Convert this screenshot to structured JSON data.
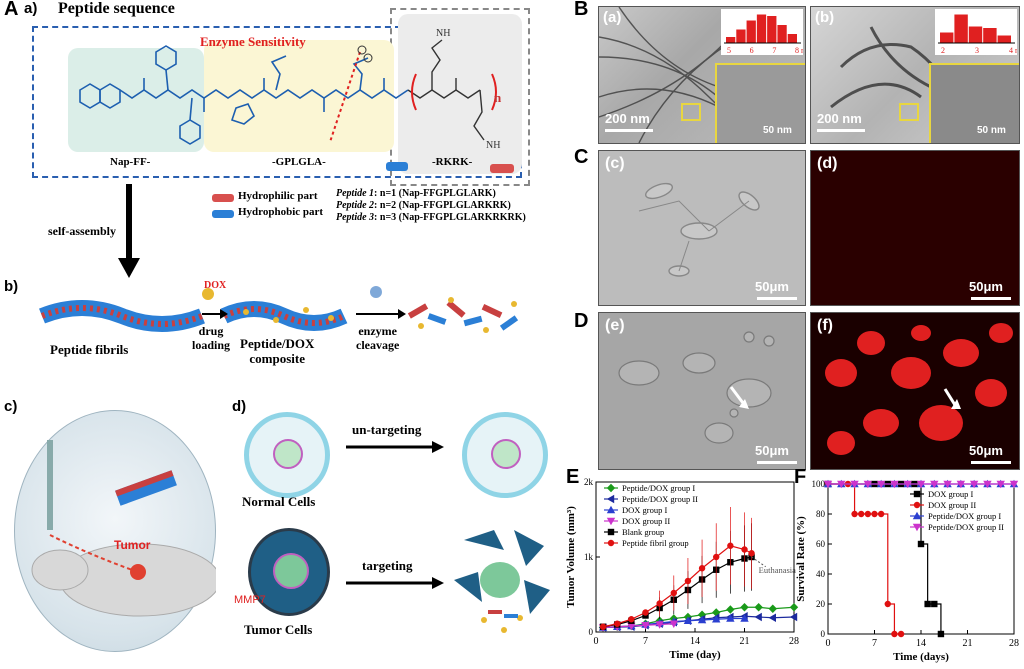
{
  "panel_A": {
    "letter": "A",
    "sub_a": "a)",
    "title": "Peptide sequence",
    "enzyme_label": "Enzyme Sensitivity",
    "segment_labels": [
      "Nap-FF-",
      "-GPLGLA-",
      "-RKRK-"
    ],
    "n_label": "n",
    "nh2": "NH",
    "legend": {
      "hydrophilic": "Hydrophilic part",
      "hydrophobic": "Hydrophobic part"
    },
    "peptides": [
      {
        "name": "Peptide 1",
        "text": ": n=1 (Nap-FFGPLGLARK)"
      },
      {
        "name": "Peptide 2",
        "text": ": n=2 (Nap-FFGPLGLARKRK)"
      },
      {
        "name": "Peptide 3",
        "text": ": n=3 (Nap-FFGPLGLARKRKRK)"
      }
    ],
    "self_assembly": "self-assembly",
    "sub_b": "b)",
    "dox": "DOX",
    "step1": [
      "drug",
      "loading"
    ],
    "step2": [
      "enzyme",
      "cleavage"
    ],
    "fibrils": "Peptide fibrils",
    "composite": [
      "Peptide/DOX",
      "composite"
    ],
    "sub_c": "c)",
    "tumor": "Tumor",
    "sub_d": "d)",
    "untargeting": "un-targeting",
    "targeting": "targeting",
    "normal_cells": "Normal Cells",
    "tumor_cells": "Tumor Cells",
    "mmp7": "MMP7"
  },
  "panel_B": {
    "letter": "B",
    "left_tag": "(a)",
    "right_tag": "(b)",
    "scale": "200 nm",
    "inset_scale": "50 nm",
    "hist_a": {
      "ticks": [
        "5",
        "6",
        "7",
        "8 nm"
      ],
      "values": [
        0.2,
        0.45,
        0.75,
        0.95,
        0.9,
        0.6,
        0.3
      ]
    },
    "hist_b": {
      "ticks": [
        "2",
        "3",
        "4 nm"
      ],
      "values": [
        0.35,
        0.95,
        0.55,
        0.5,
        0.25
      ]
    }
  },
  "panel_C": {
    "letter": "C",
    "left_tag": "(c)",
    "right_tag": "(d)",
    "scale": "50μm"
  },
  "panel_D": {
    "letter": "D",
    "left_tag": "(e)",
    "right_tag": "(f)",
    "scale": "50μm"
  },
  "panel_E_letter": "E",
  "panel_F_letter": "F",
  "chart_data": [
    {
      "type": "line",
      "xlabel": "Time (day)",
      "ylabel": "Tumor Volume (mm³)",
      "xlim": [
        0,
        28
      ],
      "ylim": [
        0,
        2000
      ],
      "xticks": [
        0,
        7,
        14,
        21,
        28
      ],
      "yticks": [
        "0",
        "1k",
        "2k"
      ],
      "annotation": "Euthanasia",
      "series": [
        {
          "name": "Peptide/DOX group I",
          "color": "#1a9a1a",
          "marker": "diamond",
          "x": [
            1,
            3,
            5,
            7,
            9,
            11,
            13,
            15,
            17,
            19,
            21,
            23,
            25,
            28
          ],
          "y": [
            60,
            70,
            80,
            110,
            150,
            180,
            200,
            230,
            260,
            300,
            330,
            330,
            310,
            330
          ]
        },
        {
          "name": "Peptide/DOX group II",
          "color": "#1c2a9e",
          "marker": "triangle-left",
          "x": [
            1,
            3,
            5,
            7,
            9,
            11,
            13,
            15,
            17,
            19,
            21,
            23,
            25,
            28
          ],
          "y": [
            60,
            65,
            70,
            90,
            110,
            130,
            150,
            170,
            190,
            200,
            210,
            200,
            190,
            200
          ]
        },
        {
          "name": "DOX group I",
          "color": "#2a3fd0",
          "marker": "triangle-up",
          "x": [
            1,
            3,
            5,
            7,
            9,
            11,
            13,
            15,
            17,
            19,
            21
          ],
          "y": [
            60,
            70,
            80,
            100,
            120,
            140,
            150,
            160,
            170,
            180,
            180
          ]
        },
        {
          "name": "DOX group II",
          "color": "#cc33cc",
          "marker": "triangle-down",
          "x": [
            1,
            3,
            5,
            7,
            9,
            11
          ],
          "y": [
            60,
            70,
            80,
            90,
            100,
            110
          ]
        },
        {
          "name": "Blank group",
          "color": "#000000",
          "marker": "square",
          "x": [
            1,
            3,
            5,
            7,
            9,
            11,
            13,
            15,
            17,
            19,
            21,
            22
          ],
          "y": [
            70,
            100,
            150,
            220,
            320,
            430,
            560,
            700,
            830,
            930,
            980,
            1000
          ]
        },
        {
          "name": "Peptide fibril group",
          "color": "#e01010",
          "marker": "circle",
          "x": [
            1,
            3,
            5,
            7,
            9,
            11,
            13,
            15,
            17,
            19,
            21,
            22
          ],
          "y": [
            70,
            110,
            170,
            260,
            380,
            520,
            680,
            850,
            1000,
            1150,
            1100,
            1050
          ]
        }
      ]
    },
    {
      "type": "line",
      "xlabel": "Time (days)",
      "ylabel": "Survival Rate (%)",
      "xlim": [
        0,
        28
      ],
      "ylim": [
        0,
        100
      ],
      "xticks": [
        0,
        7,
        14,
        21,
        28
      ],
      "yticks": [
        0,
        20,
        40,
        60,
        80,
        100
      ],
      "series": [
        {
          "name": "DOX group I",
          "color": "#000000",
          "marker": "square",
          "x": [
            0,
            7,
            9,
            11,
            13,
            14,
            15,
            16,
            17
          ],
          "y": [
            100,
            100,
            100,
            100,
            100,
            60,
            20,
            20,
            0
          ]
        },
        {
          "name": "DOX group II",
          "color": "#e01010",
          "marker": "circle",
          "x": [
            0,
            3,
            4,
            5,
            6,
            7,
            8,
            9,
            10,
            11
          ],
          "y": [
            100,
            100,
            80,
            80,
            80,
            80,
            80,
            20,
            0,
            0
          ]
        },
        {
          "name": "Peptide/DOX group I",
          "color": "#2a3fd0",
          "marker": "triangle-up",
          "x": [
            0,
            2,
            4,
            6,
            8,
            10,
            12,
            14,
            16,
            18,
            20,
            22,
            24,
            26,
            28
          ],
          "y": [
            100,
            100,
            100,
            100,
            100,
            100,
            100,
            100,
            100,
            100,
            100,
            100,
            100,
            100,
            100
          ]
        },
        {
          "name": "Peptide/DOX group II",
          "color": "#cc33cc",
          "marker": "triangle-down",
          "x": [
            0,
            2,
            4,
            6,
            8,
            10,
            12,
            14,
            16,
            18,
            20,
            22,
            24,
            26,
            28
          ],
          "y": [
            100,
            100,
            100,
            100,
            100,
            100,
            100,
            100,
            100,
            100,
            100,
            100,
            100,
            100,
            100
          ]
        }
      ]
    }
  ]
}
